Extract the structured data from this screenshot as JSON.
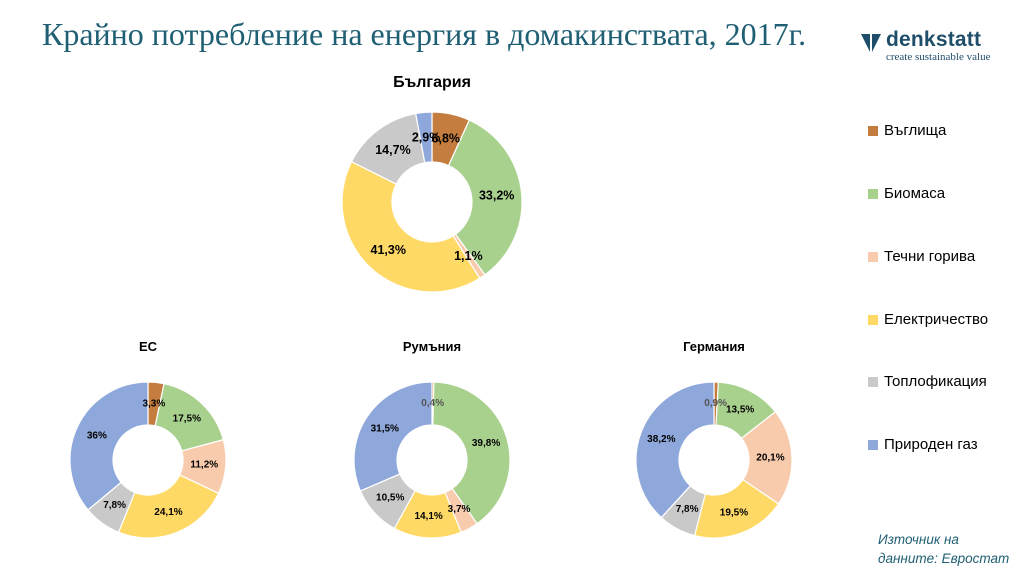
{
  "slide": {
    "title": "Крайно потребление на енергия в домакинствата, 2017г.",
    "logo": {
      "name": "denkstatt",
      "tagline": "create sustainable value",
      "icon": "denkstatt-logo-icon"
    },
    "source_line1": "Източник на",
    "source_line2": "данните: Евростат"
  },
  "colors": {
    "Въглища": "#c47d3e",
    "Биомаса": "#a9d18e",
    "Течни горива": "#f8cbad",
    "Електричество": "#ffd966",
    "Топлофикация": "#c9c9c9",
    "Природен газ": "#8fa8dc",
    "title": "#1f5f73"
  },
  "legend": [
    "Въглища",
    "Биомаса",
    "Течни горива",
    "Електричество",
    "Топлофикация",
    "Природен газ"
  ],
  "chart_data": [
    {
      "type": "pie",
      "title": "България",
      "categories": [
        "Въглища",
        "Биомаса",
        "Течни горива",
        "Електричество",
        "Топлофикация",
        "Природен газ"
      ],
      "values": [
        6.8,
        33.2,
        1.1,
        41.3,
        14.7,
        2.9
      ],
      "labels": [
        "6,8%",
        "33,2%",
        "1,1%",
        "41,3%",
        "14,7%",
        "2,9%"
      ]
    },
    {
      "type": "pie",
      "title": "ЕС",
      "categories": [
        "Въглища",
        "Биомаса",
        "Течни горива",
        "Електричество",
        "Топлофикация",
        "Природен газ"
      ],
      "values": [
        3.3,
        17.5,
        11.2,
        24.1,
        7.8,
        36
      ],
      "labels": [
        "3,3%",
        "17,5%",
        "11,2%",
        "24,1%",
        "7,8%",
        "36%"
      ]
    },
    {
      "type": "pie",
      "title": "Румъния",
      "categories": [
        "Въглища",
        "Биомаса",
        "Течни горива",
        "Електричество",
        "Топлофикация",
        "Природен газ"
      ],
      "values": [
        0.4,
        39.8,
        3.7,
        14.1,
        10.5,
        31.5
      ],
      "labels": [
        "0,4%",
        "39,8%",
        "3,7%",
        "14,1%",
        "10,5%",
        "31,5%"
      ]
    },
    {
      "type": "pie",
      "title": "Германия",
      "categories": [
        "Въглища",
        "Биомаса",
        "Течни горива",
        "Електричество",
        "Топлофикация",
        "Природен газ"
      ],
      "values": [
        0.9,
        13.5,
        20.1,
        19.5,
        7.8,
        38.2
      ],
      "labels": [
        "0,9%",
        "13,5%",
        "20,1%",
        "19,5%",
        "7,8%",
        "38,2%"
      ]
    }
  ]
}
